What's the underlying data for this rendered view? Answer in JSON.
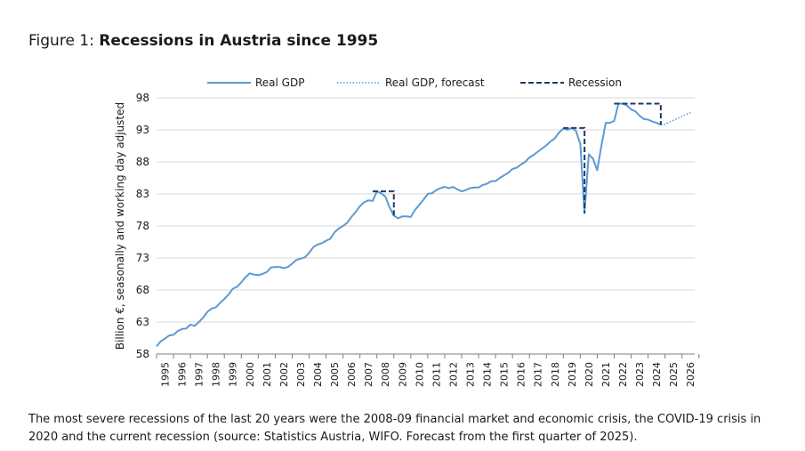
{
  "title": {
    "prefix": "Figure 1: ",
    "main": "Recessions in Austria since 1995"
  },
  "caption": "The most severe recessions of the last 20 years were the 2008-09 financial market and economic crisis, the COVID-19 crisis in 2020 and the current recession (source: Statistics Austria, WIFO. Forecast from the first quarter of 2025).",
  "chart_data": {
    "type": "line",
    "title": "Recessions in Austria since 1995",
    "xlabel": "",
    "ylabel": "Billion €, seasonally and working day adjusted",
    "ylim": [
      58,
      98
    ],
    "xlim": [
      1995,
      2026.75
    ],
    "yticks": [
      58,
      63,
      68,
      73,
      78,
      83,
      88,
      93,
      98
    ],
    "xticks": [
      "1995",
      "1996",
      "1997",
      "1998",
      "1999",
      "2000",
      "2001",
      "2002",
      "2003",
      "2004",
      "2005",
      "2006",
      "2007",
      "2008",
      "2009",
      "2010",
      "2011",
      "2012",
      "2013",
      "2014",
      "2015",
      "2016",
      "2017",
      "2018",
      "2019",
      "2020",
      "2021",
      "2022",
      "2023",
      "2024",
      "2025",
      "2026"
    ],
    "grid": true,
    "legend": [
      "Real GDP",
      "Real GDP, forecast",
      "Recession"
    ],
    "colors": {
      "gdp": "#5b9bd5",
      "forecast": "#5b9bd5",
      "recession": "#1f3864",
      "grid": "#d9d9d9",
      "axis": "#7f7f7f"
    },
    "series": [
      {
        "name": "Real GDP",
        "style": "solid",
        "points": [
          [
            1995.0,
            59.2
          ],
          [
            1995.25,
            60.0
          ],
          [
            1995.5,
            60.4
          ],
          [
            1995.75,
            60.9
          ],
          [
            1996.0,
            61.0
          ],
          [
            1996.25,
            61.6
          ],
          [
            1996.5,
            61.9
          ],
          [
            1996.75,
            62.0
          ],
          [
            1997.0,
            62.6
          ],
          [
            1997.25,
            62.4
          ],
          [
            1997.5,
            63.0
          ],
          [
            1997.75,
            63.7
          ],
          [
            1998.0,
            64.6
          ],
          [
            1998.25,
            65.1
          ],
          [
            1998.5,
            65.3
          ],
          [
            1998.75,
            66.0
          ],
          [
            1999.0,
            66.6
          ],
          [
            1999.25,
            67.3
          ],
          [
            1999.5,
            68.2
          ],
          [
            1999.75,
            68.5
          ],
          [
            2000.0,
            69.2
          ],
          [
            2000.25,
            70.0
          ],
          [
            2000.5,
            70.6
          ],
          [
            2000.75,
            70.4
          ],
          [
            2001.0,
            70.3
          ],
          [
            2001.25,
            70.5
          ],
          [
            2001.5,
            70.8
          ],
          [
            2001.75,
            71.5
          ],
          [
            2002.0,
            71.6
          ],
          [
            2002.25,
            71.6
          ],
          [
            2002.5,
            71.4
          ],
          [
            2002.75,
            71.6
          ],
          [
            2003.0,
            72.1
          ],
          [
            2003.25,
            72.7
          ],
          [
            2003.5,
            72.9
          ],
          [
            2003.75,
            73.1
          ],
          [
            2004.0,
            73.8
          ],
          [
            2004.25,
            74.7
          ],
          [
            2004.5,
            75.1
          ],
          [
            2004.75,
            75.3
          ],
          [
            2005.0,
            75.7
          ],
          [
            2005.25,
            76.0
          ],
          [
            2005.5,
            77.0
          ],
          [
            2005.75,
            77.6
          ],
          [
            2006.0,
            78.0
          ],
          [
            2006.25,
            78.5
          ],
          [
            2006.5,
            79.4
          ],
          [
            2006.75,
            80.2
          ],
          [
            2007.0,
            81.1
          ],
          [
            2007.25,
            81.7
          ],
          [
            2007.5,
            82.0
          ],
          [
            2007.75,
            81.9
          ],
          [
            2008.0,
            83.4
          ],
          [
            2008.25,
            83.1
          ],
          [
            2008.5,
            82.6
          ],
          [
            2008.75,
            80.9
          ],
          [
            2009.0,
            79.6
          ],
          [
            2009.25,
            79.2
          ],
          [
            2009.5,
            79.5
          ],
          [
            2009.75,
            79.5
          ],
          [
            2010.0,
            79.4
          ],
          [
            2010.25,
            80.5
          ],
          [
            2010.5,
            81.3
          ],
          [
            2010.75,
            82.1
          ],
          [
            2011.0,
            83.0
          ],
          [
            2011.25,
            83.1
          ],
          [
            2011.5,
            83.6
          ],
          [
            2011.75,
            83.9
          ],
          [
            2012.0,
            84.1
          ],
          [
            2012.25,
            83.9
          ],
          [
            2012.5,
            84.1
          ],
          [
            2012.75,
            83.7
          ],
          [
            2013.0,
            83.4
          ],
          [
            2013.25,
            83.6
          ],
          [
            2013.5,
            83.9
          ],
          [
            2013.75,
            84.0
          ],
          [
            2014.0,
            84.0
          ],
          [
            2014.25,
            84.4
          ],
          [
            2014.5,
            84.6
          ],
          [
            2014.75,
            85.0
          ],
          [
            2015.0,
            85.0
          ],
          [
            2015.25,
            85.5
          ],
          [
            2015.5,
            85.9
          ],
          [
            2015.75,
            86.3
          ],
          [
            2016.0,
            86.9
          ],
          [
            2016.25,
            87.1
          ],
          [
            2016.5,
            87.6
          ],
          [
            2016.75,
            88.0
          ],
          [
            2017.0,
            88.7
          ],
          [
            2017.25,
            89.1
          ],
          [
            2017.5,
            89.6
          ],
          [
            2017.75,
            90.1
          ],
          [
            2018.0,
            90.6
          ],
          [
            2018.25,
            91.2
          ],
          [
            2018.5,
            91.7
          ],
          [
            2018.75,
            92.6
          ],
          [
            2019.0,
            93.2
          ],
          [
            2019.25,
            93.0
          ],
          [
            2019.5,
            93.3
          ],
          [
            2019.75,
            92.8
          ],
          [
            2020.0,
            90.8
          ],
          [
            2020.25,
            80.0
          ],
          [
            2020.5,
            89.2
          ],
          [
            2020.75,
            88.5
          ],
          [
            2021.0,
            86.7
          ],
          [
            2021.25,
            90.6
          ],
          [
            2021.5,
            94.1
          ],
          [
            2021.75,
            94.1
          ],
          [
            2022.0,
            94.4
          ],
          [
            2022.25,
            97.1
          ],
          [
            2022.5,
            97.1
          ],
          [
            2022.75,
            96.8
          ],
          [
            2023.0,
            96.2
          ],
          [
            2023.25,
            95.9
          ],
          [
            2023.5,
            95.2
          ],
          [
            2023.75,
            94.7
          ],
          [
            2024.0,
            94.6
          ],
          [
            2024.25,
            94.3
          ],
          [
            2024.5,
            94.1
          ],
          [
            2024.75,
            93.8
          ]
        ]
      },
      {
        "name": "Real GDP, forecast",
        "style": "dotted",
        "points": [
          [
            2024.75,
            93.8
          ],
          [
            2025.0,
            93.9
          ],
          [
            2025.25,
            94.2
          ],
          [
            2025.5,
            94.5
          ],
          [
            2025.75,
            94.8
          ],
          [
            2026.0,
            95.1
          ],
          [
            2026.25,
            95.4
          ],
          [
            2026.5,
            95.7
          ]
        ]
      }
    ],
    "recessions": [
      {
        "start": 2007.75,
        "end": 2009.0,
        "peak": 83.4,
        "trough": 79.2
      },
      {
        "start": 2019.0,
        "end": 2020.25,
        "peak": 93.3,
        "trough": 80.0
      },
      {
        "start": 2022.0,
        "end": 2024.75,
        "peak": 97.1,
        "trough": 93.8
      }
    ]
  }
}
